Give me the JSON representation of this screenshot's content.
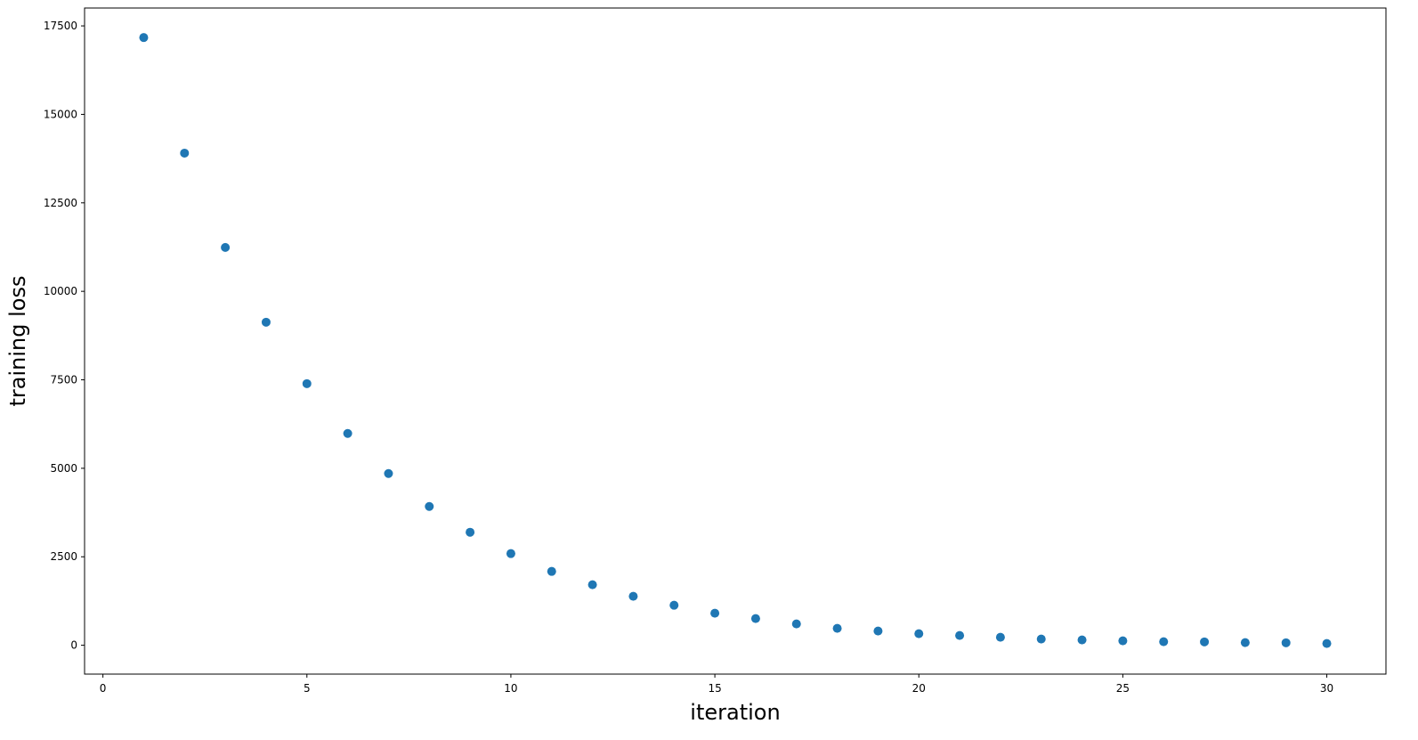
{
  "chart_data": {
    "type": "scatter",
    "x_label": "iteration",
    "y_label": "training loss",
    "x": [
      1,
      2,
      3,
      4,
      5,
      6,
      7,
      8,
      9,
      10,
      11,
      12,
      13,
      14,
      15,
      16,
      17,
      18,
      19,
      20,
      21,
      22,
      23,
      24,
      25,
      26,
      27,
      28,
      29,
      30
    ],
    "values": [
      17170,
      13905,
      11240,
      9128,
      7392,
      5984,
      4853,
      3922,
      3193,
      2590,
      2087,
      1710,
      1383,
      1131,
      905,
      754,
      603,
      478,
      402,
      327,
      277,
      226,
      176,
      151,
      126,
      100,
      95,
      75,
      70,
      50
    ],
    "color": "#1f77b4",
    "xlim": [
      -0.45,
      31.45
    ],
    "xticks": [
      0,
      5,
      10,
      15,
      20,
      25,
      30
    ],
    "ylim": [
      -815,
      18005
    ],
    "yticks": [
      0,
      2500,
      5000,
      7500,
      10000,
      12500,
      15000,
      17500
    ],
    "grid": false
  }
}
